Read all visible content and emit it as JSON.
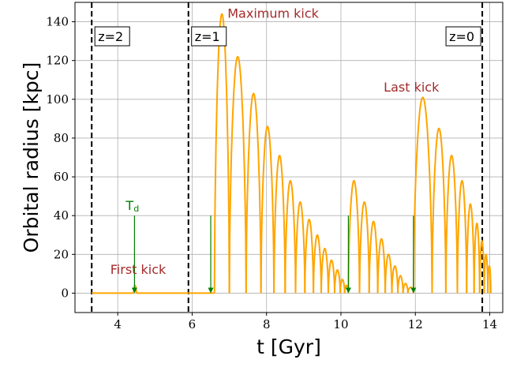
{
  "chart_data": {
    "type": "line",
    "xlabel": "t [Gyr]",
    "ylabel": "Orbital radius [kpc]",
    "xlim": [
      2.85,
      14.35
    ],
    "ylim": [
      -10,
      150
    ],
    "xticks": [
      4,
      6,
      8,
      10,
      12,
      14
    ],
    "yticks": [
      0,
      20,
      40,
      60,
      80,
      100,
      120,
      140
    ],
    "grid": true,
    "colors": {
      "series": "#FFA500",
      "annotation_text": "#A52A2A",
      "arrow": "#008000",
      "vline": "#000000",
      "grid": "#B0B0B0"
    },
    "redshift_markers": [
      {
        "label": "z=2",
        "t": 3.3
      },
      {
        "label": "z=1",
        "t": 5.9
      },
      {
        "label": "z=0",
        "t": 13.8
      }
    ],
    "annotations": [
      {
        "text": "Maximum kick",
        "x": 6.95,
        "y": 142
      },
      {
        "text": "Last kick",
        "x": 11.15,
        "y": 104
      },
      {
        "text": "First kick",
        "x": 3.8,
        "y": 10
      }
    ],
    "td_label": {
      "main": "T",
      "sub": "d",
      "x": 4.45,
      "y": 43
    },
    "arrows": [
      {
        "x": 4.45,
        "y_from": 40,
        "y_to": 0
      },
      {
        "x": 6.5,
        "y_from": 40,
        "y_to": 0
      },
      {
        "x": 10.2,
        "y_from": 40,
        "y_to": 0
      },
      {
        "x": 11.95,
        "y_from": 40,
        "y_to": 0
      }
    ],
    "series": [
      {
        "baseline_segments": [
          [
            3.3,
            4.43
          ],
          [
            4.5,
            5.9
          ],
          [
            5.9,
            6.6
          ],
          [
            6.6,
            6.6
          ]
        ],
        "bumps": [
          {
            "t0": 4.43,
            "t1": 4.5,
            "peak": 4
          },
          {
            "t0": 6.6,
            "t1": 7.0,
            "peak": 144
          },
          {
            "t0": 7.0,
            "t1": 7.45,
            "peak": 122
          },
          {
            "t0": 7.45,
            "t1": 7.85,
            "peak": 103
          },
          {
            "t0": 7.85,
            "t1": 8.2,
            "peak": 86
          },
          {
            "t0": 8.2,
            "t1": 8.5,
            "peak": 71
          },
          {
            "t0": 8.5,
            "t1": 8.78,
            "peak": 58
          },
          {
            "t0": 8.78,
            "t1": 9.03,
            "peak": 47
          },
          {
            "t0": 9.03,
            "t1": 9.26,
            "peak": 38
          },
          {
            "t0": 9.26,
            "t1": 9.47,
            "peak": 30
          },
          {
            "t0": 9.47,
            "t1": 9.66,
            "peak": 23
          },
          {
            "t0": 9.66,
            "t1": 9.83,
            "peak": 17
          },
          {
            "t0": 9.83,
            "t1": 9.98,
            "peak": 12
          },
          {
            "t0": 9.98,
            "t1": 10.1,
            "peak": 7
          },
          {
            "t0": 10.1,
            "t1": 10.2,
            "peak": 4
          },
          {
            "t0": 10.2,
            "t1": 10.5,
            "peak": 58
          },
          {
            "t0": 10.5,
            "t1": 10.76,
            "peak": 47
          },
          {
            "t0": 10.76,
            "t1": 10.99,
            "peak": 37
          },
          {
            "t0": 10.99,
            "t1": 11.19,
            "peak": 28
          },
          {
            "t0": 11.19,
            "t1": 11.37,
            "peak": 20
          },
          {
            "t0": 11.37,
            "t1": 11.53,
            "peak": 14
          },
          {
            "t0": 11.53,
            "t1": 11.67,
            "peak": 9
          },
          {
            "t0": 11.67,
            "t1": 11.8,
            "peak": 5
          },
          {
            "t0": 11.8,
            "t1": 11.95,
            "peak": 3
          },
          {
            "t0": 11.95,
            "t1": 12.45,
            "peak": 101
          },
          {
            "t0": 12.45,
            "t1": 12.82,
            "peak": 85
          },
          {
            "t0": 12.82,
            "t1": 13.13,
            "peak": 71
          },
          {
            "t0": 13.13,
            "t1": 13.38,
            "peak": 58
          },
          {
            "t0": 13.38,
            "t1": 13.58,
            "peak": 46
          },
          {
            "t0": 13.58,
            "t1": 13.73,
            "peak": 36
          },
          {
            "t0": 13.73,
            "t1": 13.85,
            "peak": 27
          },
          {
            "t0": 13.85,
            "t1": 13.95,
            "peak": 20
          },
          {
            "t0": 13.95,
            "t1": 14.03,
            "peak": 14
          }
        ]
      }
    ]
  }
}
